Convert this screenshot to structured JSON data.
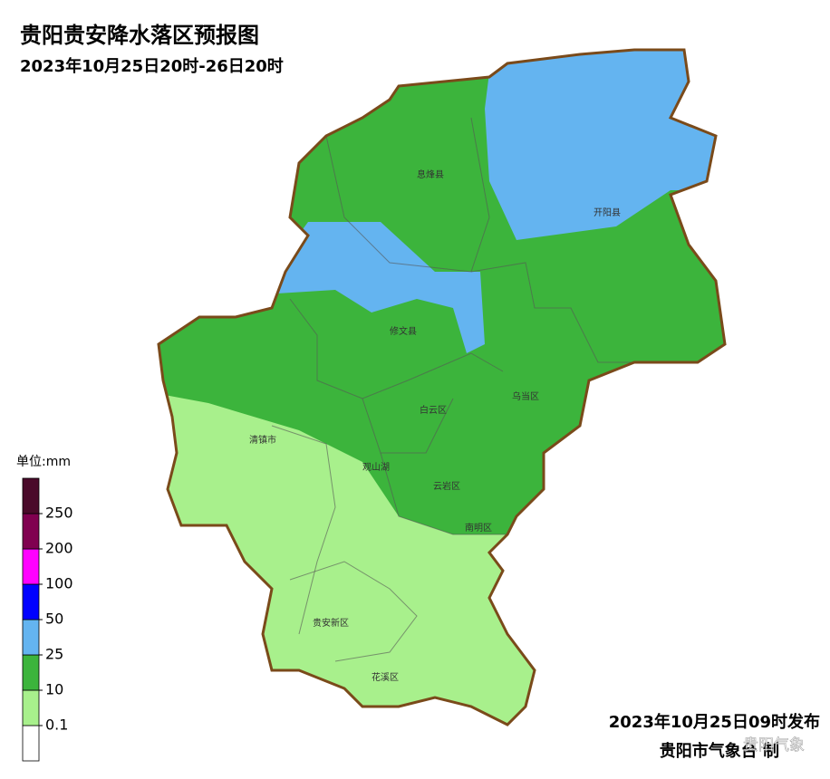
{
  "header": {
    "title": "贵阳贵安降水落区预报图",
    "subtitle": "2023年10月25日20时-26日20时"
  },
  "legend": {
    "unit": "单位:mm",
    "ticks": [
      0.1,
      10,
      25,
      50,
      100,
      200,
      250
    ],
    "colors": [
      "#ffffff",
      "#a8f08c",
      "#3cb43c",
      "#64b4f0",
      "#0000ff",
      "#ff00ff",
      "#800050",
      "#4a0a2a"
    ]
  },
  "districts": [
    "息烽县",
    "开阳县",
    "修文县",
    "白云区",
    "乌当区",
    "清镇市",
    "观山湖",
    "云岩区",
    "南明区",
    "贵安新区",
    "花溪区"
  ],
  "footer": {
    "issued": "2023年10月25日09时发布",
    "issuer": "贵阳市气象台 制",
    "watermark": "贵阳气象"
  }
}
